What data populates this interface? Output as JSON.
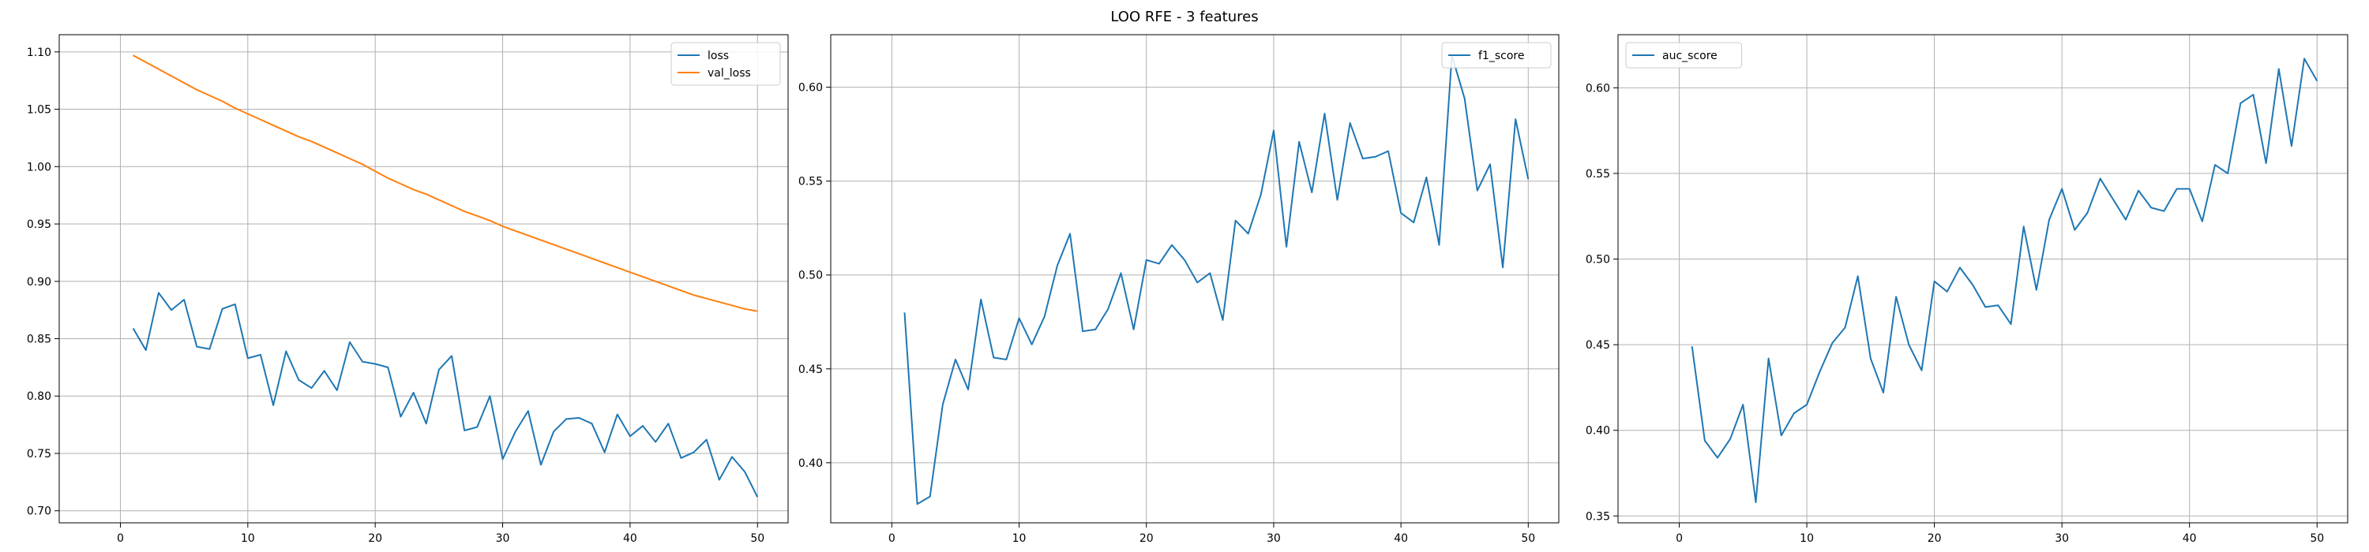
{
  "figure": {
    "suptitle": "LOO RFE - 3 features"
  },
  "colors": {
    "blue": "#1f77b4",
    "orange": "#ff7f0e",
    "grid": "#b0b0b0",
    "axis": "#000000"
  },
  "chart_data": [
    {
      "type": "line",
      "title": "",
      "xlabel": "",
      "ylabel": "",
      "xlim": [
        -4.8,
        52.4
      ],
      "ylim": [
        0.6895,
        1.115
      ],
      "xticks": [
        0,
        10,
        20,
        30,
        40,
        50
      ],
      "yticks": [
        0.7,
        0.75,
        0.8,
        0.85,
        0.9,
        0.95,
        1.0,
        1.05,
        1.1
      ],
      "ytick_decimals": 2,
      "grid": true,
      "legend": "upper right",
      "x": [
        1,
        2,
        3,
        4,
        5,
        6,
        7,
        8,
        9,
        10,
        11,
        12,
        13,
        14,
        15,
        16,
        17,
        18,
        19,
        20,
        21,
        22,
        23,
        24,
        25,
        26,
        27,
        28,
        29,
        30,
        31,
        32,
        33,
        34,
        35,
        36,
        37,
        38,
        39,
        40,
        41,
        42,
        43,
        44,
        45,
        46,
        47,
        48,
        49,
        50
      ],
      "series": [
        {
          "name": "loss",
          "color": "#1f77b4",
          "values": [
            0.859,
            0.84,
            0.89,
            0.875,
            0.884,
            0.843,
            0.841,
            0.876,
            0.88,
            0.833,
            0.836,
            0.792,
            0.839,
            0.814,
            0.807,
            0.822,
            0.805,
            0.847,
            0.83,
            0.828,
            0.825,
            0.782,
            0.803,
            0.776,
            0.823,
            0.835,
            0.77,
            0.773,
            0.8,
            0.745,
            0.769,
            0.787,
            0.74,
            0.769,
            0.78,
            0.781,
            0.776,
            0.751,
            0.784,
            0.765,
            0.774,
            0.76,
            0.776,
            0.746,
            0.751,
            0.762,
            0.727,
            0.747,
            0.734,
            0.712
          ]
        },
        {
          "name": "val_loss",
          "color": "#ff7f0e",
          "values": [
            1.097,
            1.091,
            1.085,
            1.079,
            1.073,
            1.067,
            1.062,
            1.057,
            1.051,
            1.046,
            1.041,
            1.036,
            1.031,
            1.026,
            1.022,
            1.017,
            1.012,
            1.007,
            1.002,
            0.996,
            0.99,
            0.985,
            0.98,
            0.976,
            0.971,
            0.966,
            0.961,
            0.957,
            0.953,
            0.948,
            0.944,
            0.94,
            0.936,
            0.932,
            0.928,
            0.924,
            0.92,
            0.916,
            0.912,
            0.908,
            0.904,
            0.9,
            0.896,
            0.892,
            0.888,
            0.885,
            0.882,
            0.879,
            0.876,
            0.874
          ]
        }
      ]
    },
    {
      "type": "line",
      "title": "",
      "xlabel": "",
      "ylabel": "",
      "xlim": [
        -4.8,
        52.4
      ],
      "ylim": [
        0.368,
        0.628
      ],
      "xticks": [
        0,
        10,
        20,
        30,
        40,
        50
      ],
      "yticks": [
        0.4,
        0.45,
        0.5,
        0.55,
        0.6
      ],
      "ytick_decimals": 2,
      "grid": true,
      "legend": "upper right",
      "x": [
        1,
        2,
        3,
        4,
        5,
        6,
        7,
        8,
        9,
        10,
        11,
        12,
        13,
        14,
        15,
        16,
        17,
        18,
        19,
        20,
        21,
        22,
        23,
        24,
        25,
        26,
        27,
        28,
        29,
        30,
        31,
        32,
        33,
        34,
        35,
        36,
        37,
        38,
        39,
        40,
        41,
        42,
        43,
        44,
        45,
        46,
        47,
        48,
        49,
        50
      ],
      "series": [
        {
          "name": "f1_score",
          "color": "#1f77b4",
          "values": [
            0.48,
            0.378,
            0.382,
            0.431,
            0.455,
            0.439,
            0.487,
            0.456,
            0.455,
            0.477,
            0.463,
            0.478,
            0.505,
            0.522,
            0.47,
            0.471,
            0.482,
            0.501,
            0.471,
            0.508,
            0.506,
            0.516,
            0.508,
            0.496,
            0.501,
            0.476,
            0.529,
            0.522,
            0.543,
            0.577,
            0.515,
            0.571,
            0.544,
            0.586,
            0.54,
            0.581,
            0.562,
            0.563,
            0.566,
            0.533,
            0.528,
            0.552,
            0.516,
            0.617,
            0.594,
            0.545,
            0.559,
            0.504,
            0.583,
            0.551
          ]
        }
      ]
    },
    {
      "type": "line",
      "title": "",
      "xlabel": "",
      "ylabel": "",
      "xlim": [
        -4.8,
        52.4
      ],
      "ylim": [
        0.346,
        0.631
      ],
      "xticks": [
        0,
        10,
        20,
        30,
        40,
        50
      ],
      "yticks": [
        0.35,
        0.4,
        0.45,
        0.5,
        0.55,
        0.6
      ],
      "ytick_decimals": 2,
      "grid": true,
      "legend": "upper left",
      "x": [
        1,
        2,
        3,
        4,
        5,
        6,
        7,
        8,
        9,
        10,
        11,
        12,
        13,
        14,
        15,
        16,
        17,
        18,
        19,
        20,
        21,
        22,
        23,
        24,
        25,
        26,
        27,
        28,
        29,
        30,
        31,
        32,
        33,
        34,
        35,
        36,
        37,
        38,
        39,
        40,
        41,
        42,
        43,
        44,
        45,
        46,
        47,
        48,
        49,
        50
      ],
      "series": [
        {
          "name": "auc_score",
          "color": "#1f77b4",
          "values": [
            0.449,
            0.394,
            0.384,
            0.395,
            0.415,
            0.358,
            0.442,
            0.397,
            0.41,
            0.415,
            0.434,
            0.451,
            0.46,
            0.49,
            0.442,
            0.422,
            0.478,
            0.45,
            0.435,
            0.487,
            0.481,
            0.495,
            0.485,
            0.472,
            0.473,
            0.462,
            0.519,
            0.482,
            0.523,
            0.541,
            0.517,
            0.527,
            0.547,
            0.535,
            0.523,
            0.54,
            0.53,
            0.528,
            0.541,
            0.541,
            0.522,
            0.555,
            0.55,
            0.591,
            0.596,
            0.556,
            0.611,
            0.566,
            0.617,
            0.604
          ]
        }
      ]
    }
  ]
}
